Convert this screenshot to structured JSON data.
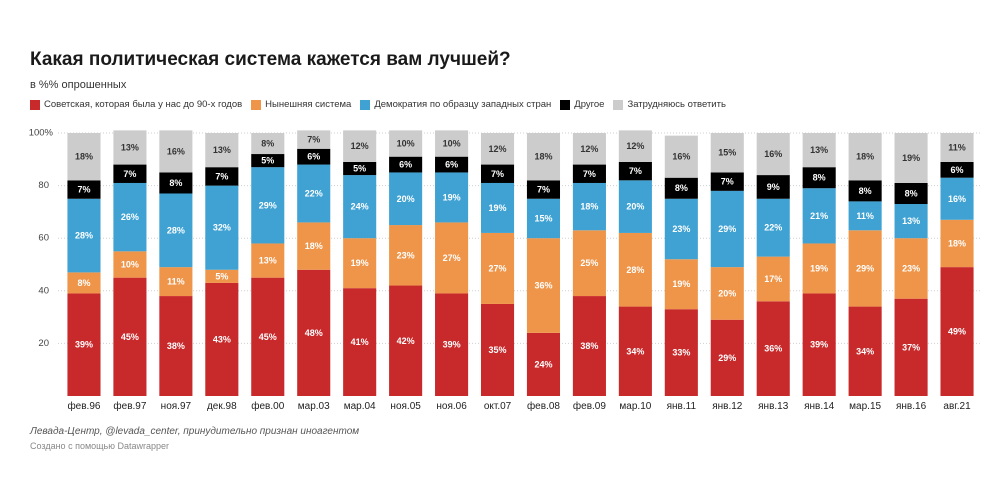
{
  "chart_data": {
    "type": "bar",
    "stacked": true,
    "title": "Какая политическая система кажется вам лучшей?",
    "subtitle": "в %% опрошенных",
    "categories": [
      "фев.96",
      "фев.97",
      "ноя.97",
      "дек.98",
      "фев.00",
      "мар.03",
      "мар.04",
      "ноя.05",
      "ноя.06",
      "окт.07",
      "фев.08",
      "фев.09",
      "мар.10",
      "янв.11",
      "янв.12",
      "янв.13",
      "янв.14",
      "мар.15",
      "янв.16",
      "авг.21"
    ],
    "series": [
      {
        "name": "Советская, которая была у нас до 90-х годов",
        "color": "#c8292b",
        "label_color": "#ffffff",
        "values": [
          39,
          45,
          38,
          43,
          45,
          48,
          41,
          42,
          39,
          35,
          24,
          38,
          34,
          33,
          29,
          36,
          39,
          34,
          37,
          49
        ]
      },
      {
        "name": "Нынешняя система",
        "color": "#ef9549",
        "label_color": "#ffffff",
        "values": [
          8,
          10,
          11,
          5,
          13,
          18,
          19,
          23,
          27,
          27,
          36,
          25,
          28,
          19,
          20,
          17,
          19,
          29,
          23,
          18
        ]
      },
      {
        "name": "Демократия по образцу западных стран",
        "color": "#3fa2d3",
        "label_color": "#ffffff",
        "values": [
          28,
          26,
          28,
          32,
          29,
          22,
          24,
          20,
          19,
          19,
          15,
          18,
          20,
          23,
          29,
          22,
          21,
          11,
          13,
          16
        ]
      },
      {
        "name": "Другое",
        "color": "#000000",
        "label_color": "#ffffff",
        "values": [
          7,
          7,
          8,
          7,
          5,
          6,
          5,
          6,
          6,
          7,
          7,
          7,
          7,
          8,
          7,
          9,
          8,
          8,
          8,
          6
        ]
      },
      {
        "name": "Затрудняюсь ответить",
        "color": "#cccccc",
        "label_color": "#333333",
        "values": [
          18,
          13,
          16,
          13,
          8,
          7,
          12,
          10,
          10,
          12,
          18,
          12,
          12,
          16,
          15,
          16,
          13,
          18,
          19,
          11
        ]
      }
    ],
    "value_suffix": "%",
    "ylim": [
      0,
      100
    ],
    "yticks": [
      {
        "value": 100,
        "label": "100%"
      },
      {
        "value": 80,
        "label": "80"
      },
      {
        "value": 60,
        "label": "60"
      },
      {
        "value": 40,
        "label": "40"
      },
      {
        "value": 20,
        "label": "20"
      }
    ],
    "grid": true,
    "legend_position": "top-left"
  },
  "footer": {
    "source": "Левада-Центр, @levada_center, принудительно признан иноагентом",
    "credit": "Создано с помощью Datawrapper"
  }
}
